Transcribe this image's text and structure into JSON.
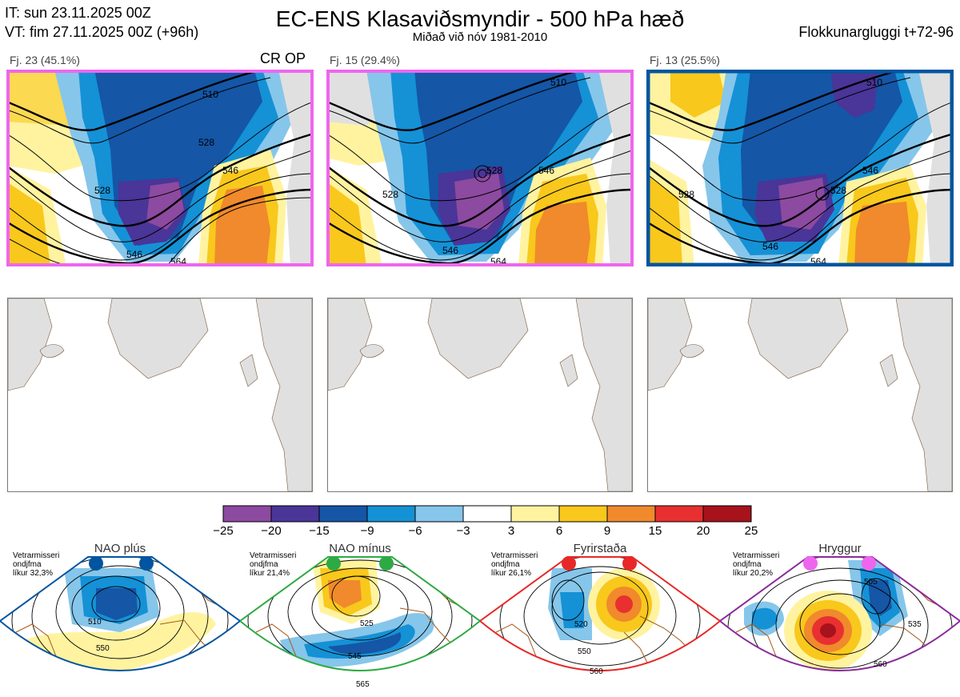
{
  "header": {
    "it": "IT: sun 23.11.2025 00Z",
    "vt": "VT: fim 27.11.2025 00Z  (+96h)",
    "title": "EC-ENS Klasaviðsmyndir - 500 hPa hæð",
    "subtitle": "Miðað við nóv 1981-2010",
    "window": "Flokkunargluggi t+72-96"
  },
  "clusters": [
    {
      "label": "Fj. 23 (45.1%)",
      "tag": "CR OP",
      "border_color": "#ee66ee",
      "contours": [
        "510",
        "528",
        "528",
        "546",
        "546",
        "564"
      ]
    },
    {
      "label": "Fj. 15 (29.4%)",
      "tag": "",
      "border_color": "#ee66ee",
      "contours": [
        "510",
        "528",
        "528",
        "546",
        "546",
        "564"
      ]
    },
    {
      "label": "Fj. 13 (25.5%)",
      "tag": "",
      "border_color": "#0055a0",
      "contours": [
        "510",
        "528",
        "528",
        "546",
        "546",
        "564"
      ]
    }
  ],
  "chart_data": {
    "type": "heatmap",
    "title": "EC-ENS Klasaviðsmyndir - 500 hPa hæð",
    "colorbar": {
      "ticks": [
        "−25",
        "−20",
        "−15",
        "−9",
        "−6",
        "−3",
        "3",
        "6",
        "9",
        "15",
        "20",
        "25"
      ],
      "colors": [
        "#8c4aa0",
        "#4a3598",
        "#1556a6",
        "#1591d6",
        "#86c6ea",
        "#ffffff",
        "#fff3a0",
        "#f9c81c",
        "#f08a2c",
        "#e83030",
        "#a8121c"
      ]
    },
    "regimes": [
      {
        "name": "NAO plús",
        "meta": "Vetrarmisseri\nondjfma\nlíkur 32,3%",
        "color": "#0055a0",
        "contours": [
          "510",
          "550"
        ]
      },
      {
        "name": "NAO mínus",
        "meta": "Vetrarmisseri\nondjfma\nlíkur 21,4%",
        "color": "#2eaa44",
        "contours": [
          "525",
          "545",
          "565"
        ]
      },
      {
        "name": "Fyrirstaða",
        "meta": "Vetrarmisseri\nondjfma\nlíkur 26,1%",
        "color": "#e82828",
        "contours": [
          "520",
          "550",
          "560"
        ]
      },
      {
        "name": "Hryggur",
        "meta": "Vetrarmisseri\nondjfma\nlíkur 20,2%",
        "color": "#8a2a9a",
        "contours": [
          "505",
          "535",
          "560"
        ]
      }
    ]
  }
}
